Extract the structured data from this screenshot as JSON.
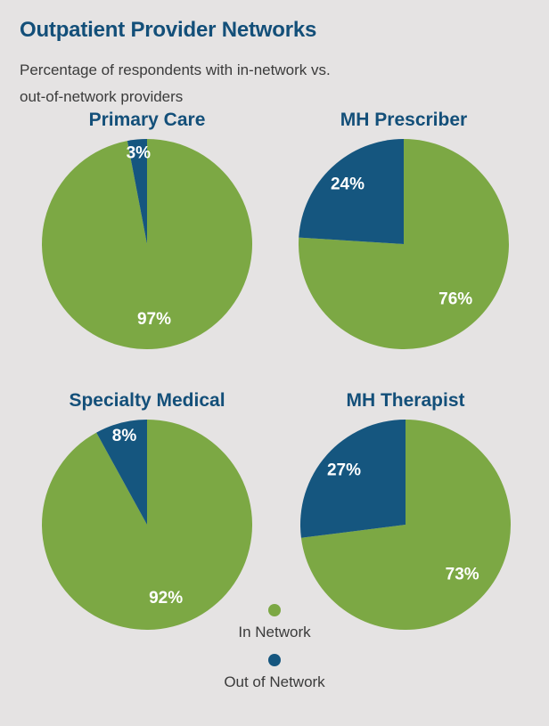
{
  "page": {
    "title": "Outpatient Provider Networks",
    "subtitle_line1": "Percentage of respondents with in-network vs.",
    "subtitle_line2": "out-of-network providers"
  },
  "colors": {
    "in_network": "#7CA844",
    "out_of_network": "#15567F",
    "heading": "#134F79",
    "body_text": "#3B3B3B",
    "background": "#E5E3E3",
    "label_text": "#FFFFFF"
  },
  "legend": {
    "items": [
      {
        "label": "In Network",
        "color_key": "in_network"
      },
      {
        "label": "Out of Network",
        "color_key": "out_of_network"
      }
    ]
  },
  "chart_data": [
    {
      "type": "pie",
      "title": "Primary Care",
      "start_angle_deg": 0,
      "direction": "clockwise",
      "slices": [
        {
          "label": "In Network",
          "value": 97,
          "display": "97%",
          "color_key": "in_network"
        },
        {
          "label": "Out of Network",
          "value": 3,
          "display": "3%",
          "color_key": "out_of_network"
        }
      ]
    },
    {
      "type": "pie",
      "title": "MH Prescriber",
      "start_angle_deg": 0,
      "direction": "clockwise",
      "slices": [
        {
          "label": "In Network",
          "value": 76,
          "display": "76%",
          "color_key": "in_network"
        },
        {
          "label": "Out of Network",
          "value": 24,
          "display": "24%",
          "color_key": "out_of_network"
        }
      ]
    },
    {
      "type": "pie",
      "title": "Specialty Medical",
      "start_angle_deg": 0,
      "direction": "clockwise",
      "slices": [
        {
          "label": "In Network",
          "value": 92,
          "display": "92%",
          "color_key": "in_network"
        },
        {
          "label": "Out of Network",
          "value": 8,
          "display": "8%",
          "color_key": "out_of_network"
        }
      ]
    },
    {
      "type": "pie",
      "title": "MH Therapist",
      "start_angle_deg": 0,
      "direction": "clockwise",
      "slices": [
        {
          "label": "In Network",
          "value": 73,
          "display": "73%",
          "color_key": "in_network"
        },
        {
          "label": "Out of Network",
          "value": 27,
          "display": "27%",
          "color_key": "out_of_network"
        }
      ]
    }
  ]
}
